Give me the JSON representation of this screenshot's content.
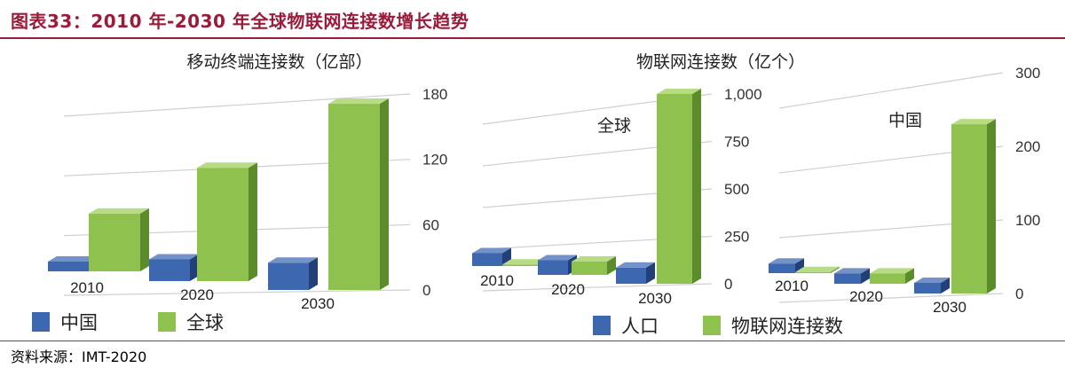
{
  "figure": {
    "title": "图表33：2010 年-2030 年全球物联网连接数增长趋势",
    "source": "资料来源：IMT-2020"
  },
  "colors": {
    "title": "#9b1c3a",
    "blue_front": "#3d67ae",
    "blue_top": "#7392c8",
    "blue_side": "#223f78",
    "green_front": "#8fc14e",
    "green_top": "#b8dc84",
    "green_side": "#5b8b2a"
  },
  "legends": [
    {
      "items": [
        "中国",
        "全球"
      ]
    },
    {
      "items": [
        "人口",
        "物联网连接数"
      ]
    }
  ],
  "chart_data": [
    {
      "type": "bar",
      "title": "移动终端连接数（亿部）",
      "categories": [
        "2010",
        "2020",
        "2030"
      ],
      "series": [
        {
          "name": "中国",
          "values": [
            9,
            20,
            25
          ]
        },
        {
          "name": "全球",
          "values": [
            53,
            104,
            171
          ]
        }
      ],
      "ylim": [
        0,
        180
      ],
      "yticks": [
        "0",
        "60",
        "120",
        "180"
      ],
      "grid": true,
      "legend": "bottom-left"
    },
    {
      "type": "bar",
      "title": "物联网连接数（亿个）",
      "annotation": "全球",
      "categories": [
        "2010",
        "2020",
        "2030"
      ],
      "series": [
        {
          "name": "人口",
          "values": [
            68,
            77,
            85
          ]
        },
        {
          "name": "物联网连接数",
          "values": [
            8,
            70,
            1000
          ]
        }
      ],
      "ylim": [
        0,
        1000
      ],
      "yticks": [
        "0",
        "250",
        "500",
        "750",
        "1,000"
      ],
      "grid": true,
      "legend": "bottom"
    },
    {
      "type": "bar",
      "annotation": "中国",
      "categories": [
        "2010",
        "2020",
        "2030"
      ],
      "series": [
        {
          "name": "人口",
          "values": [
            13,
            14,
            14.5
          ]
        },
        {
          "name": "物联网连接数",
          "values": [
            1.5,
            14,
            230
          ]
        }
      ],
      "ylim": [
        0,
        300
      ],
      "yticks": [
        "0",
        "100",
        "200",
        "300"
      ],
      "grid": true,
      "legend": "bottom"
    }
  ]
}
